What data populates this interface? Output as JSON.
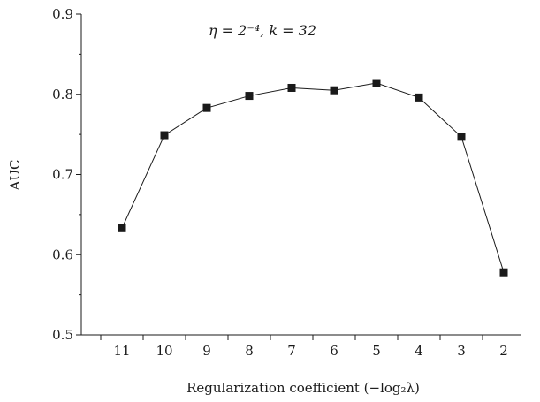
{
  "chart_data": {
    "type": "line",
    "annotation": "η = 2⁻⁴, k = 32",
    "xlabel": "Regularization coefficient (−log₂λ)",
    "ylabel": "AUC",
    "categories": [
      "11",
      "10",
      "9",
      "8",
      "7",
      "6",
      "5",
      "4",
      "3",
      "2"
    ],
    "series": [
      {
        "values": [
          0.633,
          0.749,
          0.783,
          0.798,
          0.808,
          0.805,
          0.814,
          0.796,
          0.747,
          0.578
        ]
      }
    ],
    "ylim": [
      0.5,
      0.9
    ],
    "yticks": [
      0.5,
      0.6,
      0.7,
      0.8,
      0.9
    ],
    "ytick_labels": [
      "0.5",
      "0.6",
      "0.7",
      "0.8",
      "0.9"
    ],
    "grid": false,
    "marker": "square",
    "color": "#1a1a1a"
  }
}
